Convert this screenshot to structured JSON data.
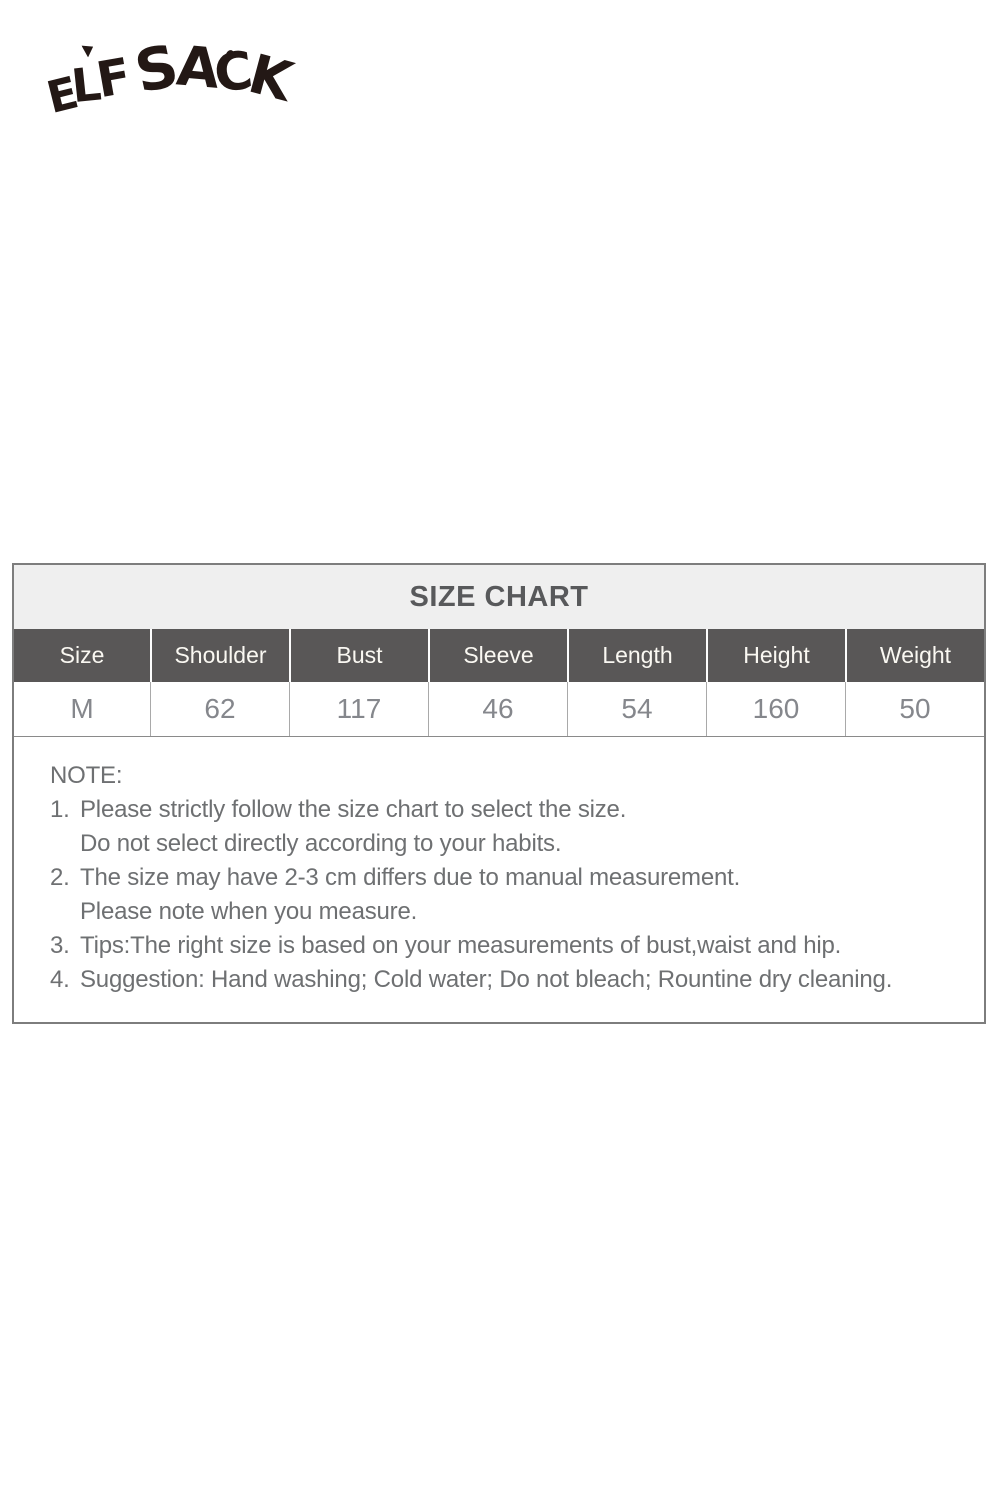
{
  "brand": {
    "name": "ELF SACK",
    "letters": {
      "e": "E",
      "l": "L",
      "f": "F",
      "s": "S",
      "a": "A",
      "c": "C",
      "k": "K"
    }
  },
  "size_chart": {
    "title": "SIZE CHART",
    "columns": [
      "Size",
      "Shoulder",
      "Bust",
      "Sleeve",
      "Length",
      "Height",
      "Weight"
    ],
    "row": [
      "M",
      "62",
      "117",
      "46",
      "54",
      "160",
      "50"
    ]
  },
  "note": {
    "heading": "NOTE:",
    "items": [
      {
        "num": "1.",
        "lines": [
          "Please strictly follow the size chart to select the size.",
          "Do not select directly according to your habits."
        ]
      },
      {
        "num": "2.",
        "lines": [
          "The size may have 2-3 cm differs due to manual measurement.",
          "Please note when you measure."
        ]
      },
      {
        "num": "3.",
        "lines": [
          "Tips:The right size is based on your measurements of bust,waist and hip."
        ]
      },
      {
        "num": "4.",
        "lines": [
          "Suggestion: Hand washing; Cold water; Do not bleach; Rountine dry cleaning."
        ]
      }
    ]
  },
  "colors": {
    "logo": "#231815",
    "title_bar_bg": "#efefef",
    "title_text": "#58595b",
    "header_bg": "#595757",
    "header_text": "#faf8f2",
    "data_text": "#85878c",
    "note_text": "#6e7072",
    "border": "#7d7d7d"
  }
}
